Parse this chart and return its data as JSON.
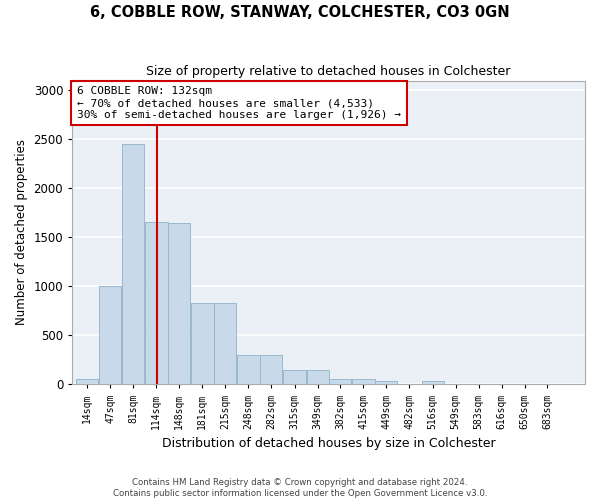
{
  "title": "6, COBBLE ROW, STANWAY, COLCHESTER, CO3 0GN",
  "subtitle": "Size of property relative to detached houses in Colchester",
  "xlabel": "Distribution of detached houses by size in Colchester",
  "ylabel": "Number of detached properties",
  "bin_labels": [
    "14sqm",
    "47sqm",
    "81sqm",
    "114sqm",
    "148sqm",
    "181sqm",
    "215sqm",
    "248sqm",
    "282sqm",
    "315sqm",
    "349sqm",
    "382sqm",
    "415sqm",
    "449sqm",
    "482sqm",
    "516sqm",
    "549sqm",
    "583sqm",
    "616sqm",
    "650sqm",
    "683sqm"
  ],
  "bin_edges": [
    14,
    47,
    81,
    114,
    148,
    181,
    215,
    248,
    282,
    315,
    349,
    382,
    415,
    449,
    482,
    516,
    549,
    583,
    616,
    650,
    683,
    716
  ],
  "bar_heights": [
    50,
    1000,
    2450,
    1660,
    1650,
    830,
    830,
    300,
    300,
    150,
    150,
    50,
    50,
    30,
    0,
    30,
    0,
    0,
    0,
    0,
    0
  ],
  "bar_color": "#c8daea",
  "bar_edge_color": "#9ab8cc",
  "vline_x": 132,
  "vline_color": "#cc0000",
  "annotation_text": "6 COBBLE ROW: 132sqm\n← 70% of detached houses are smaller (4,533)\n30% of semi-detached houses are larger (1,926) →",
  "annotation_box_color": "#ffffff",
  "annotation_box_edge": "#cc0000",
  "ylim": [
    0,
    3100
  ],
  "yticks": [
    0,
    500,
    1000,
    1500,
    2000,
    2500,
    3000
  ],
  "footnote": "Contains HM Land Registry data © Crown copyright and database right 2024.\nContains public sector information licensed under the Open Government Licence v3.0.",
  "background_color": "#ffffff",
  "plot_bg_color": "#eaf0f6",
  "grid_color": "#ffffff"
}
